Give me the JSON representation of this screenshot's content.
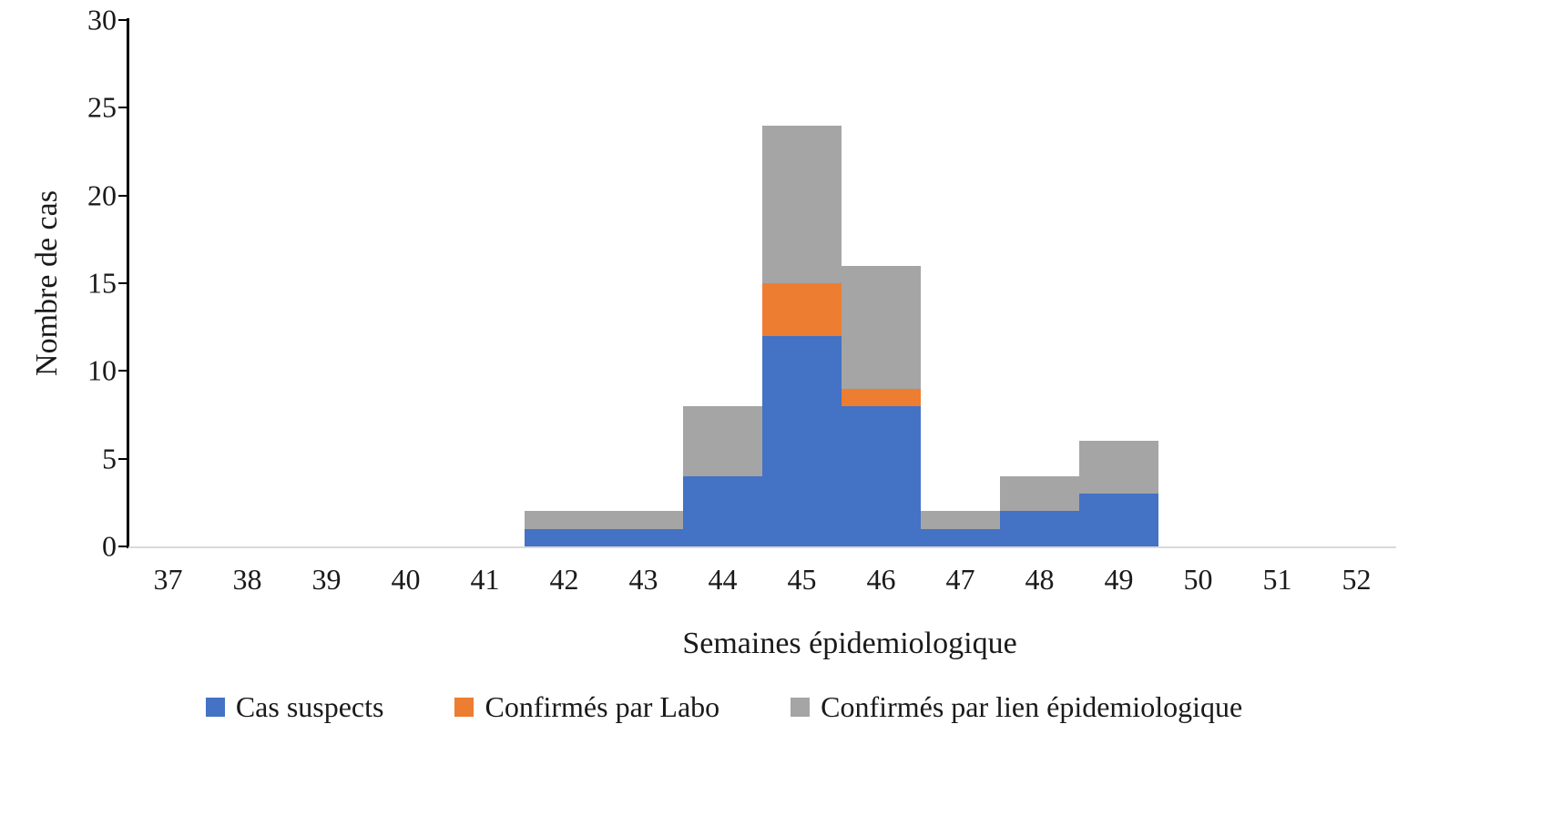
{
  "chart_data": {
    "type": "bar",
    "stacked": true,
    "title": "",
    "xlabel": "Semaines épidemiologique",
    "ylabel": "Nombre de cas",
    "categories": [
      "37",
      "38",
      "39",
      "40",
      "41",
      "42",
      "43",
      "44",
      "45",
      "46",
      "47",
      "48",
      "49",
      "50",
      "51",
      "52"
    ],
    "series": [
      {
        "name": "Cas suspects",
        "color": "#4472C4",
        "values": [
          0,
          0,
          0,
          0,
          0,
          1,
          1,
          4,
          12,
          8,
          1,
          2,
          3,
          0,
          0,
          0
        ]
      },
      {
        "name": "Confirmés par Labo",
        "color": "#ED7D31",
        "values": [
          0,
          0,
          0,
          0,
          0,
          0,
          0,
          0,
          3,
          1,
          0,
          0,
          0,
          0,
          0,
          0
        ]
      },
      {
        "name": "Confirmés par lien épidemiologique",
        "color": "#A5A5A5",
        "values": [
          0,
          0,
          0,
          0,
          0,
          1,
          1,
          4,
          9,
          7,
          1,
          2,
          3,
          0,
          0,
          0
        ]
      }
    ],
    "ylim": [
      0,
      30
    ],
    "yticks": [
      0,
      5,
      10,
      15,
      20,
      25,
      30
    ],
    "grid": false,
    "legend_position": "bottom",
    "bar_gap": 0,
    "axis_colors": {
      "y_axis": "#000000",
      "x_axis": "#D9D9D9",
      "text": "#1A1A1A"
    }
  }
}
